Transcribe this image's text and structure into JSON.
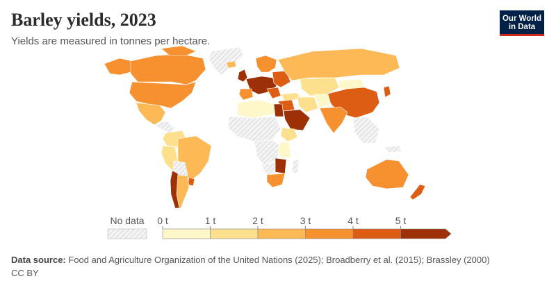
{
  "header": {
    "title": "Barley yields, 2023",
    "subtitle": "Yields are measured in tonnes per hectare."
  },
  "logo": {
    "line1": "Our World",
    "line2": "in Data"
  },
  "legend": {
    "no_data_label": "No data",
    "tick_labels": [
      "0 t",
      "1 t",
      "2 t",
      "3 t",
      "4 t",
      "5 t"
    ],
    "bins": [
      {
        "min": 0,
        "max": 1,
        "color": "#fef7c9"
      },
      {
        "min": 1,
        "max": 2,
        "color": "#fde08e"
      },
      {
        "min": 2,
        "max": 3,
        "color": "#fcb955"
      },
      {
        "min": 3,
        "max": 4,
        "color": "#f7902f"
      },
      {
        "min": 4,
        "max": 5,
        "color": "#dd5d14"
      },
      {
        "min": 5,
        "max": null,
        "color": "#9d3006"
      }
    ]
  },
  "footer": {
    "source_label": "Data source:",
    "source_text": "Food and Agriculture Organization of the United Nations (2025); Broadberry et al. (2015); Brassley (2000)",
    "license": "CC BY"
  }
}
